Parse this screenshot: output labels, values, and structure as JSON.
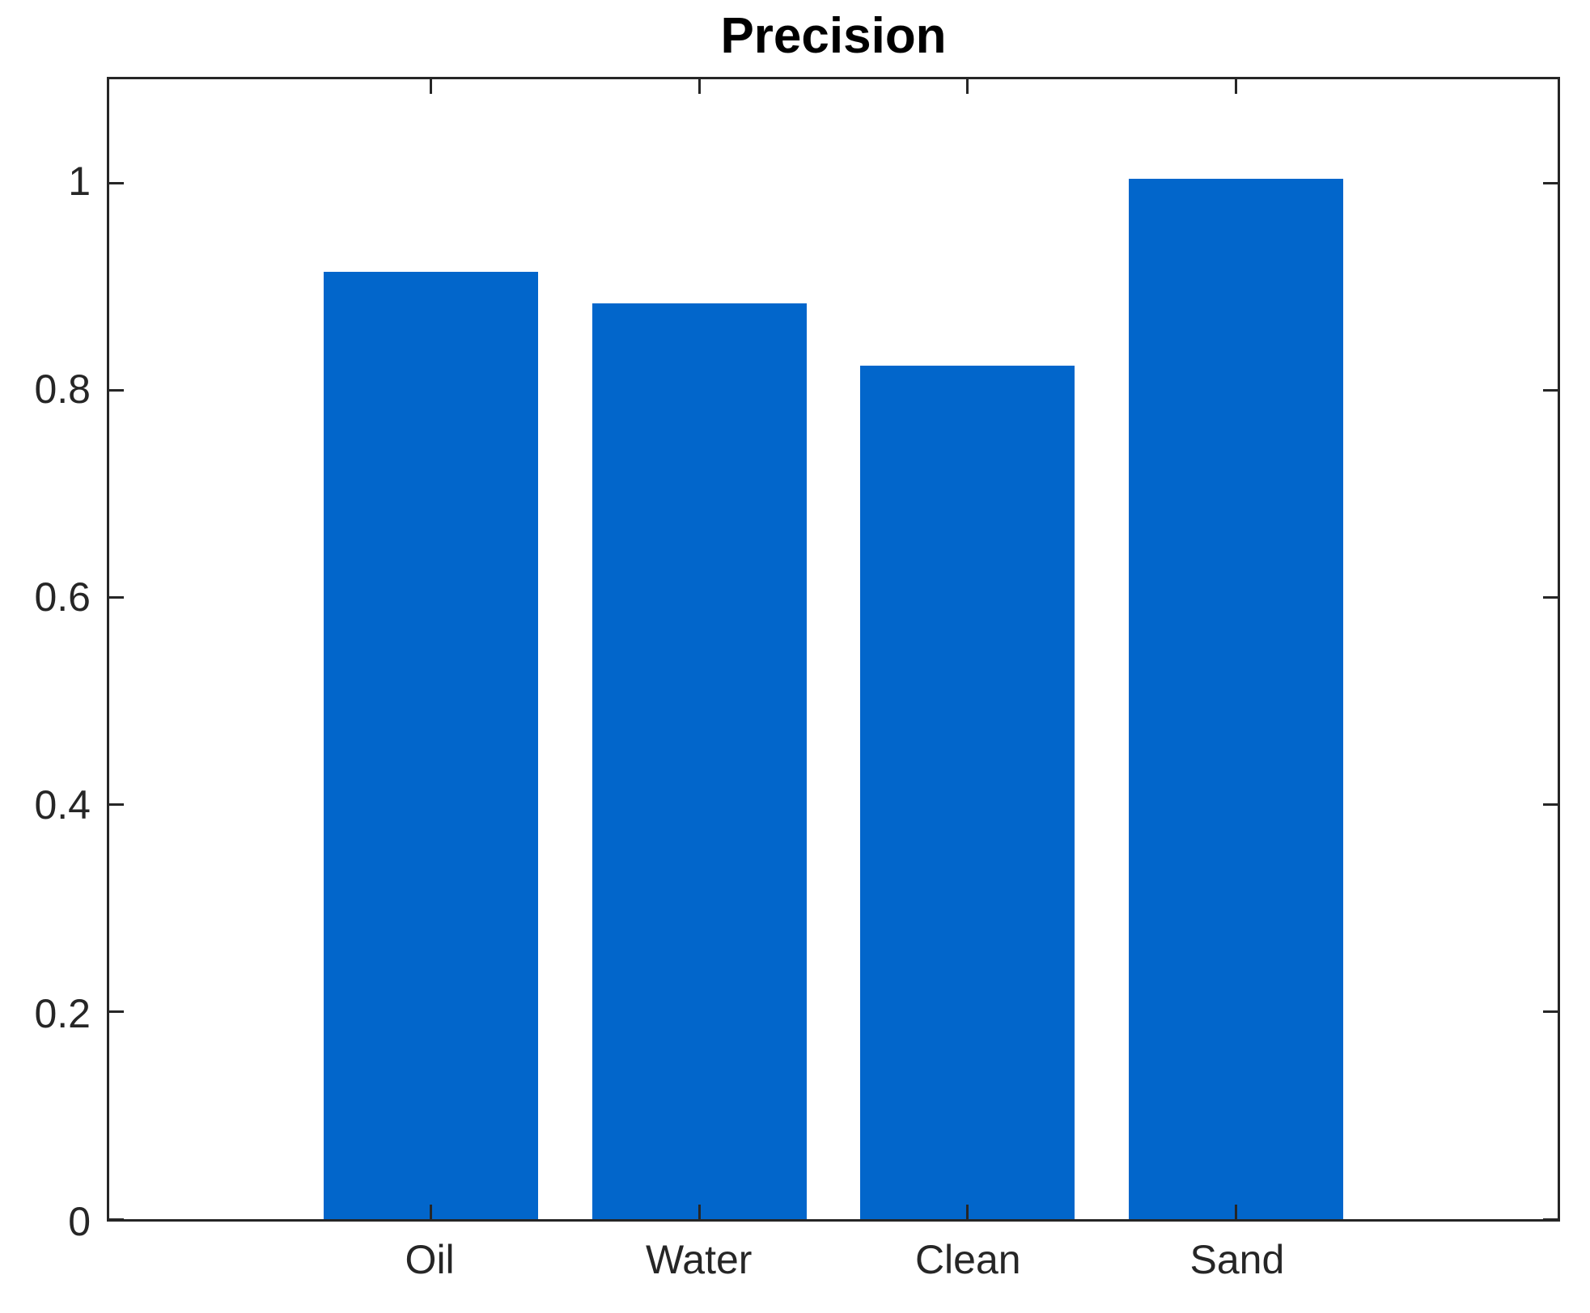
{
  "chart_data": {
    "type": "bar",
    "title": "Precision",
    "categories": [
      "Oil",
      "Water",
      "Clean",
      "Sand"
    ],
    "values": [
      0.91,
      0.88,
      0.82,
      1.0
    ],
    "xlabel": "",
    "ylabel": "",
    "ylim": [
      0,
      1.1
    ],
    "xlim": [
      -0.2,
      5.2
    ],
    "yticks": [
      0,
      0.2,
      0.4,
      0.6,
      0.8,
      1
    ],
    "ytick_labels": [
      "0",
      "0.2",
      "0.4",
      "0.6",
      "0.8",
      "1"
    ],
    "bar_width": 0.8,
    "bar_color": "#0266CB",
    "axis_color": "#262626",
    "background_color": "#FFFFFF",
    "grid": false,
    "legend": "none",
    "box": true
  }
}
